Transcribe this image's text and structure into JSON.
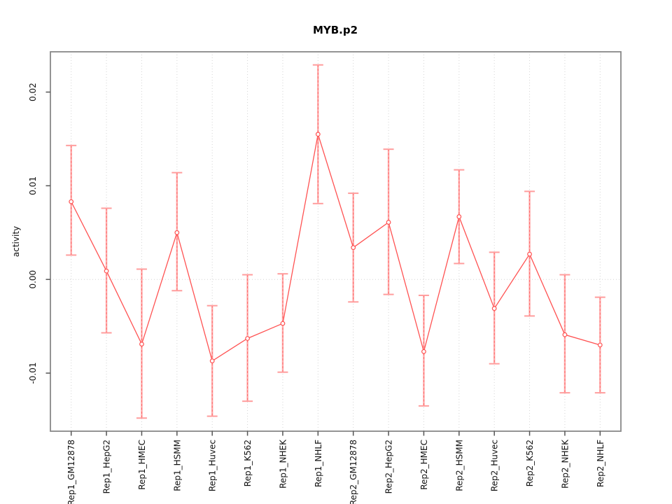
{
  "figure": {
    "title": "MYB.p2",
    "ylabel": "activity"
  },
  "chart_data": {
    "type": "line",
    "title": "MYB.p2",
    "xlabel": "",
    "ylabel": "activity",
    "categories": [
      "Rep1_GM12878",
      "Rep1_HepG2",
      "Rep1_HMEC",
      "Rep1_HSMM",
      "Rep1_Huvec",
      "Rep1_K562",
      "Rep1_NHEK",
      "Rep1_NHLF",
      "Rep2_GM12878",
      "Rep2_HepG2",
      "Rep2_HMEC",
      "Rep2_HSMM",
      "Rep2_Huvec",
      "Rep2_K562",
      "Rep2_NHEK",
      "Rep2_NHLF"
    ],
    "series": [
      {
        "name": "activity",
        "values": [
          0.0083,
          0.0009,
          -0.0069,
          0.005,
          -0.0087,
          -0.0063,
          -0.0047,
          0.0155,
          0.0034,
          0.0061,
          -0.0077,
          0.0067,
          -0.0031,
          0.0027,
          -0.0059,
          -0.007
        ],
        "error_high": [
          0.0143,
          0.0076,
          0.0011,
          0.0114,
          -0.0028,
          0.0005,
          0.0006,
          0.0229,
          0.0092,
          0.0139,
          -0.0017,
          0.0117,
          0.0029,
          0.0094,
          0.0005,
          -0.0019
        ],
        "error_low": [
          0.0026,
          -0.0057,
          -0.0148,
          -0.0012,
          -0.0146,
          -0.013,
          -0.0099,
          0.0081,
          -0.0024,
          -0.0016,
          -0.0135,
          0.0017,
          -0.009,
          -0.0039,
          -0.0121,
          -0.0121
        ]
      }
    ],
    "ylim": [
      -0.0162,
      0.0243
    ],
    "yticks": [
      -0.01,
      0,
      0.01,
      0.02
    ],
    "ytick_labels": [
      "-0.01",
      "0.00",
      "0.01",
      "0.02"
    ],
    "grid": {
      "vertical": "dotted at every category",
      "horizontal_at_zero": true
    },
    "legend_position": "none",
    "colors": {
      "line": "#ff5252",
      "point": "#ff5252",
      "point_fill": "#ffffff",
      "error_bar": "#ffabab",
      "error_cap": "#ff9d9d",
      "error_dash": "#ff6b6b",
      "grid": "#d4d4d4",
      "box": "#888888",
      "tick": "#555555"
    }
  }
}
